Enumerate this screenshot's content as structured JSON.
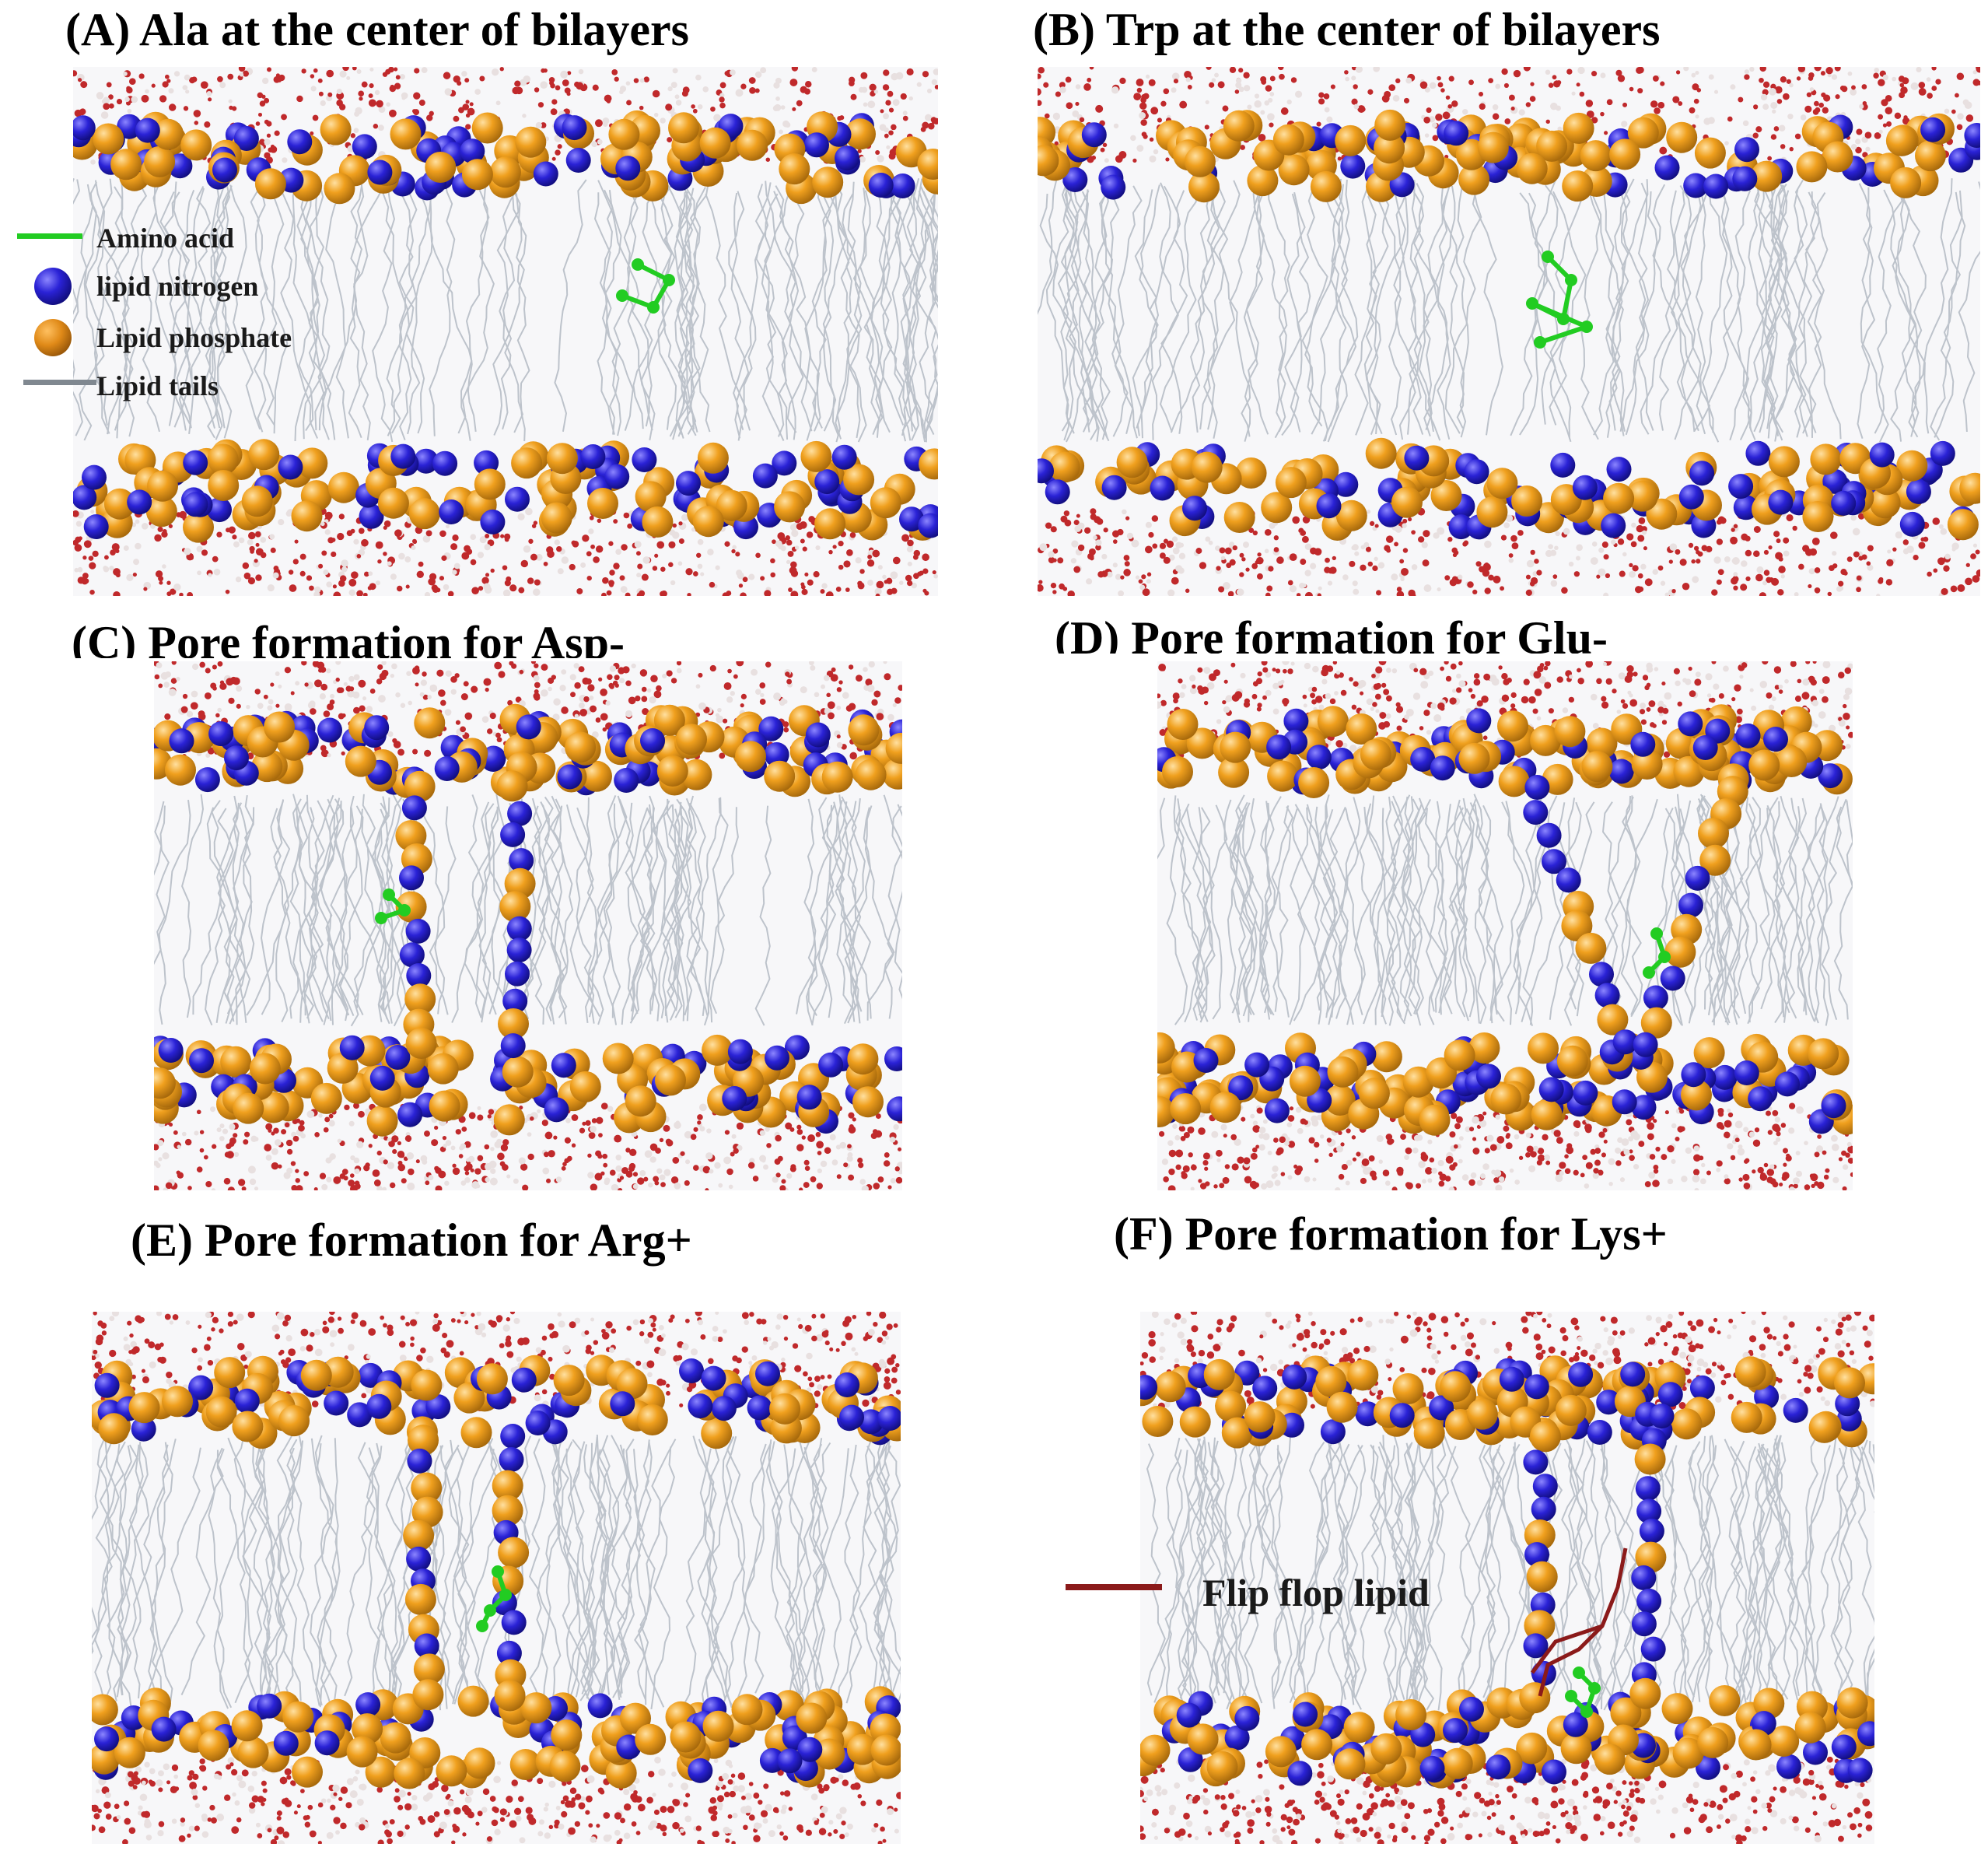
{
  "panels": [
    {
      "id": "A",
      "title": "(A)  Ala at the center of bilayers"
    },
    {
      "id": "B",
      "title": "(B) Trp at the center of bilayers"
    },
    {
      "id": "C",
      "title": "(C) Pore formation for Asp-"
    },
    {
      "id": "D",
      "title": "(D)  Pore formation for Glu-"
    },
    {
      "id": "E",
      "title": "(E) Pore formation for Arg+"
    },
    {
      "id": "F",
      "title": "(F)  Pore formation for Lys+"
    }
  ],
  "legend": {
    "amino_acid": "Amino acid",
    "lipid_nitrogen": "lipid nitrogen",
    "lipid_phosphate": "Lipid phosphate",
    "lipid_tails": "Lipid tails"
  },
  "flip_flop_label": "Flip flop lipid",
  "colors": {
    "amino_acid": "#22cc22",
    "lipid_nitrogen": "#2a22d6",
    "lipid_phosphate": "#f0a01e",
    "lipid_tails": "#b4bac4",
    "water": "#c0292b",
    "flip_flop_lipid": "#8b1a1a"
  }
}
